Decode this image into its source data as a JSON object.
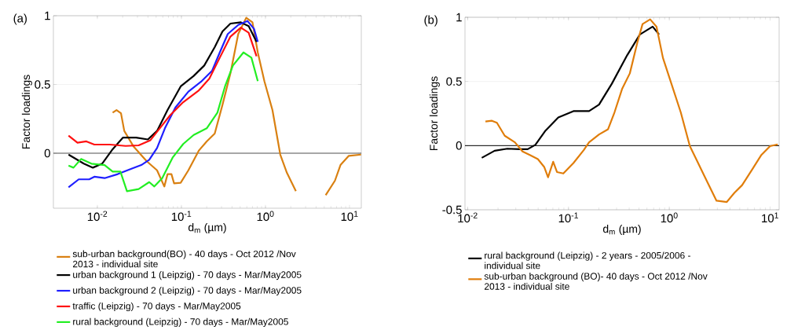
{
  "chart_data": [
    {
      "type": "line",
      "title": "(a)",
      "xlabel": "d$_{m}$ (µm)",
      "ylabel": "Factor loadings",
      "log": "x",
      "grid": "y",
      "legend": "bottom",
      "xlim": [
        0.003,
        13.8
      ],
      "ylim": [
        -0.4,
        1
      ],
      "xticks": [
        {
          "value": 0.01,
          "label": "10$^{-2}$"
        },
        {
          "value": 0.1,
          "label": "10$^{-1}$"
        },
        {
          "value": 1,
          "label": "10$^{0}$"
        },
        {
          "value": 10,
          "label": "10$^{1}$"
        }
      ],
      "yticks": [
        0,
        0.5,
        1
      ],
      "ref_lines": [
        {
          "axis": "y",
          "value": 0,
          "color": "#555555"
        }
      ],
      "series": [
        {
          "name": "sub-urban background(BO) - 40 days - Oct 2012 /Nov 2013 - individual site",
          "color": "#d98011",
          "x": [
            0.0152,
            0.0169,
            0.0191,
            0.0209,
            0.027,
            0.0385,
            0.0513,
            0.0626,
            0.0684,
            0.0761,
            0.0818,
            0.098,
            0.121,
            0.161,
            0.2,
            0.249,
            0.308,
            0.383,
            0.474,
            0.59,
            0.7,
            0.81,
            0.97,
            1.21,
            1.5,
            1.8,
            2.3,
            2.6,
            3.4,
            4.4,
            5.2,
            6.7,
            7.8,
            9.8,
            13.7
          ],
          "values": [
            0.295,
            0.314,
            0.291,
            0.162,
            0.048,
            -0.057,
            -0.124,
            -0.242,
            -0.152,
            -0.152,
            -0.219,
            -0.215,
            -0.124,
            0.019,
            0.086,
            0.143,
            0.352,
            0.581,
            0.867,
            0.985,
            0.952,
            0.733,
            0.524,
            0.314,
            -0.01,
            -0.143,
            -0.276,
            null,
            null,
            null,
            -0.305,
            -0.2,
            -0.086,
            -0.019,
            -0.01
          ]
        },
        {
          "name": "urban background 1  (Leipzig) - 70 days - Mar/May2005",
          "color": "#000000",
          "x": [
            0.00454,
            0.0069,
            0.00885,
            0.0114,
            0.0152,
            0.0202,
            0.0289,
            0.0399,
            0.0513,
            0.0684,
            0.098,
            0.14,
            0.187,
            0.249,
            0.308,
            0.383,
            0.509,
            0.631,
            0.783
          ],
          "values": [
            -0.01,
            -0.076,
            -0.105,
            -0.076,
            0.029,
            0.114,
            0.114,
            0.1,
            0.162,
            0.314,
            0.486,
            0.562,
            0.638,
            0.771,
            0.886,
            0.943,
            0.952,
            0.924,
            0.81
          ]
        },
        {
          "name": "urban background  2  (Leipzig) - 70 days - Mar/May2005",
          "color": "#1f1fff",
          "x": [
            0.00454,
            0.006,
            0.008,
            0.0092,
            0.0122,
            0.0175,
            0.0251,
            0.0333,
            0.0414,
            0.0513,
            0.0636,
            0.0849,
            0.121,
            0.174,
            0.232,
            0.286,
            0.356,
            0.474,
            0.61,
            0.73,
            0.81
          ],
          "values": [
            -0.248,
            -0.19,
            -0.19,
            -0.171,
            -0.181,
            -0.152,
            -0.114,
            -0.086,
            -0.048,
            0.038,
            0.181,
            0.333,
            0.448,
            0.524,
            0.6,
            0.733,
            0.867,
            0.933,
            0.962,
            0.905,
            0.81
          ]
        },
        {
          "name": "traffic (Leipzig) - 70 days - Mar/May2005",
          "color": "#ff1010",
          "x": [
            0.00454,
            0.0058,
            0.0074,
            0.0092,
            0.0141,
            0.0217,
            0.031,
            0.0428,
            0.0552,
            0.0733,
            0.105,
            0.161,
            0.215,
            0.286,
            0.383,
            0.509,
            0.631,
            0.783
          ],
          "values": [
            0.128,
            0.076,
            0.086,
            0.063,
            0.063,
            0.053,
            0.057,
            0.095,
            0.181,
            0.276,
            0.371,
            0.457,
            0.543,
            0.695,
            0.848,
            0.914,
            0.876,
            0.705
          ]
        },
        {
          "name": "rural background (Leipzig) - 70 days - Mar/May2005",
          "color": "#22ee22",
          "x": [
            0.00454,
            0.0052,
            0.0064,
            0.0085,
            0.0122,
            0.0152,
            0.0188,
            0.0225,
            0.031,
            0.0414,
            0.0476,
            0.0591,
            0.0791,
            0.105,
            0.14,
            0.2,
            0.268,
            0.33,
            0.41,
            0.547,
            0.68,
            0.81
          ],
          "values": [
            -0.09,
            -0.105,
            -0.042,
            -0.076,
            -0.086,
            -0.133,
            -0.133,
            -0.276,
            -0.261,
            -0.21,
            -0.242,
            -0.181,
            -0.029,
            0.067,
            0.133,
            0.181,
            0.295,
            0.486,
            0.638,
            0.733,
            0.695,
            0.524
          ]
        }
      ]
    },
    {
      "type": "line",
      "title": "(b)",
      "xlabel": "d$_{m}$ (µm)",
      "ylabel": "Factor loadings",
      "log": "x",
      "grid": "y",
      "legend": "bottom",
      "xlim": [
        0.0094,
        12.3
      ],
      "ylim": [
        -0.5,
        1
      ],
      "xticks": [
        {
          "value": 0.01,
          "label": "10$^{-2}$"
        },
        {
          "value": 0.1,
          "label": "10$^{-1}$"
        },
        {
          "value": 1,
          "label": "10$^{0}$"
        },
        {
          "value": 10,
          "label": "10$^{1}$"
        }
      ],
      "yticks": [
        -0.5,
        0,
        0.5,
        1
      ],
      "ref_lines": [
        {
          "axis": "y",
          "value": 0,
          "color": "#000000"
        }
      ],
      "series": [
        {
          "name": "rural background (Leipzig) - 2 years - 2005/2006 - individual site",
          "color": "#000000",
          "x": [
            0.0138,
            0.0185,
            0.0247,
            0.033,
            0.0394,
            0.0469,
            0.0592,
            0.0792,
            0.112,
            0.16,
            0.201,
            0.269,
            0.382,
            0.511,
            0.684,
            0.792
          ],
          "values": [
            -0.095,
            -0.04,
            -0.024,
            -0.028,
            -0.028,
            0.006,
            0.117,
            0.219,
            0.269,
            0.269,
            0.32,
            0.482,
            0.704,
            0.866,
            0.927,
            0.866
          ]
        },
        {
          "name": "sub-urban background (BO)- 40 days - Oct 2012 /Nov 2013 - individual site",
          "color": "#e07d0a",
          "x": [
            0.015,
            0.0174,
            0.0195,
            0.0233,
            0.0294,
            0.035,
            0.0417,
            0.0497,
            0.0574,
            0.0627,
            0.0705,
            0.0769,
            0.0889,
            0.112,
            0.142,
            0.16,
            0.201,
            0.247,
            0.286,
            0.34,
            0.406,
            0.483,
            0.543,
            0.646,
            0.747,
            0.865,
            1.03,
            1.3,
            1.6,
            1.85,
            2.2,
            2.94,
            3.72,
            4.42,
            5.28,
            6.65,
            8.15,
            10.0,
            11.9
          ],
          "values": [
            0.188,
            0.194,
            0.178,
            0.077,
            0.026,
            -0.045,
            -0.075,
            -0.105,
            -0.166,
            -0.247,
            -0.126,
            -0.206,
            -0.217,
            -0.136,
            -0.034,
            0.026,
            0.087,
            0.128,
            0.259,
            0.441,
            0.563,
            0.806,
            0.947,
            0.984,
            0.927,
            0.684,
            0.502,
            0.259,
            -0.004,
            -0.105,
            -0.227,
            -0.429,
            -0.439,
            -0.368,
            -0.308,
            -0.186,
            -0.075,
            -0.004,
            0.01
          ]
        }
      ]
    }
  ]
}
